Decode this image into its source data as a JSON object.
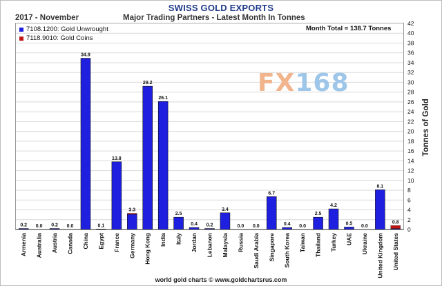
{
  "chart_data": {
    "type": "bar",
    "title": "SWISS GOLD EXPORTS",
    "date_label": "2017 - November",
    "subtitle": "Major Trading Partners - Latest Month In Tonnes",
    "month_total": "Month Total = 138.7 Tonnes",
    "ylabel": "Tonnes of Gold",
    "ylim": [
      0,
      42
    ],
    "yticks": [
      0,
      2,
      4,
      6,
      8,
      10,
      12,
      14,
      16,
      18,
      20,
      22,
      24,
      26,
      28,
      30,
      32,
      34,
      36,
      38,
      40,
      42
    ],
    "grid": true,
    "legend_position": "top-left",
    "categories": [
      "Armenia",
      "Australia",
      "Austria",
      "Canada",
      "China",
      "Egypt",
      "France",
      "Germany",
      "Hong Kong",
      "India",
      "Italy",
      "Jordan",
      "Lebanon",
      "Malaysia",
      "Russia",
      "Saudi Arabia",
      "Singapore",
      "South Korea",
      "Taiwan",
      "Thailand",
      "Turkey",
      "UAE",
      "Ukraine",
      "United Kingdom",
      "United States"
    ],
    "data_labels": [
      "0.2",
      "0.0",
      "0.2",
      "0.0",
      "34.9",
      "0.1",
      "13.8",
      "3.3",
      "29.2",
      "26.1",
      "2.5",
      "0.4",
      "0.2",
      "3.4",
      "0.0",
      "0.0",
      "6.7",
      "0.4",
      "0.0",
      "2.5",
      "4.2",
      "0.5",
      "0.0",
      "8.1",
      "0.8"
    ],
    "series": [
      {
        "name": "7108.1200: Gold Unwrought",
        "color": "#1f1fe0",
        "values": [
          0.2,
          0.0,
          0.2,
          0.0,
          34.9,
          0.1,
          13.8,
          3.1,
          29.2,
          26.1,
          2.5,
          0.4,
          0.2,
          3.4,
          0.0,
          0.0,
          6.7,
          0.4,
          0.0,
          2.5,
          4.2,
          0.5,
          0.0,
          8.1,
          0.2
        ]
      },
      {
        "name": "7118.9010: Gold Coins",
        "color": "#c01515",
        "values": [
          0.0,
          0.0,
          0.0,
          0.0,
          0.0,
          0.0,
          0.0,
          0.2,
          0.0,
          0.0,
          0.0,
          0.0,
          0.0,
          0.0,
          0.0,
          0.0,
          0.0,
          0.0,
          0.0,
          0.0,
          0.0,
          0.0,
          0.0,
          0.0,
          0.6
        ]
      }
    ]
  },
  "watermark": {
    "part1": "FX",
    "part2": "168"
  },
  "footer": "world gold charts © www.goldchartsrus.com"
}
